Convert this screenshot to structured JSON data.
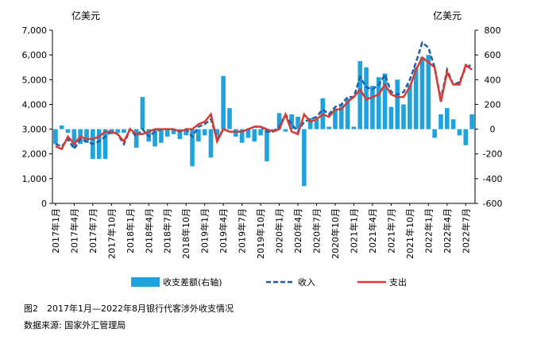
{
  "chart_data": {
    "type": "combo",
    "y_unit_left": "亿美元",
    "y_unit_right": "亿美元",
    "caption": "图2　2017年1月—2022年8月银行代客涉外收支情况",
    "source": "数据来源: 国家外汇管理局",
    "categories": [
      "2017年1月",
      null,
      null,
      "2017年4月",
      null,
      null,
      "2017年7月",
      null,
      null,
      "2017年10月",
      null,
      null,
      "2018年1月",
      null,
      null,
      "2018年4月",
      null,
      null,
      "2018年7月",
      null,
      null,
      "2018年10月",
      null,
      null,
      "2019年1月",
      null,
      null,
      "2019年4月",
      null,
      null,
      "2019年7月",
      null,
      null,
      "2019年10月",
      null,
      null,
      "2020年1月",
      null,
      null,
      "2020年4月",
      null,
      null,
      "2020年7月",
      null,
      null,
      "2020年10月",
      null,
      null,
      "2021年1月",
      null,
      null,
      "2021年4月",
      null,
      null,
      "2021年7月",
      null,
      null,
      "2021年10月",
      null,
      null,
      "2022年1月",
      null,
      null,
      "2022年4月",
      null,
      null,
      "2022年7月",
      null
    ],
    "series": [
      {
        "name": "收支差额(右轴)",
        "type": "bar",
        "axis": "y2",
        "color": "#1fa3de",
        "values": [
          -120,
          30,
          -30,
          -150,
          -120,
          -110,
          -240,
          -240,
          -240,
          -40,
          -30,
          -30,
          -10,
          -150,
          260,
          -100,
          -140,
          -110,
          -60,
          -40,
          -80,
          -50,
          -300,
          -100,
          -50,
          -230,
          -50,
          430,
          170,
          -60,
          -110,
          -70,
          -100,
          -50,
          -260,
          -10,
          130,
          -20,
          120,
          100,
          -460,
          90,
          80,
          250,
          20,
          160,
          200,
          250,
          20,
          550,
          500,
          350,
          420,
          450,
          180,
          400,
          200,
          360,
          500,
          580,
          600,
          -70,
          120,
          170,
          80,
          -50,
          -130,
          120
        ]
      },
      {
        "name": "收入",
        "type": "line",
        "dashed": true,
        "color": "#1f5fa8",
        "values": [
          2400,
          2300,
          2600,
          2200,
          2600,
          2500,
          2400,
          2500,
          2700,
          2900,
          2800,
          2400,
          3000,
          2700,
          3000,
          2700,
          2900,
          3000,
          3000,
          3000,
          2900,
          3000,
          2700,
          3100,
          3200,
          3400,
          2600,
          3000,
          2900,
          2900,
          2900,
          3000,
          3100,
          3100,
          2900,
          2900,
          3100,
          3600,
          3200,
          2900,
          3300,
          3400,
          3500,
          3800,
          3600,
          3900,
          4000,
          4300,
          4300,
          5100,
          4700,
          4600,
          4800,
          5200,
          4500,
          4400,
          4500,
          5000,
          5700,
          6500,
          6300,
          5500,
          4200,
          5400,
          4800,
          4900,
          5500,
          5600
        ]
      },
      {
        "name": "支出",
        "type": "line",
        "dashed": false,
        "color": "#d93a35",
        "values": [
          2300,
          2200,
          2700,
          2400,
          2700,
          2600,
          2600,
          2700,
          2900,
          2900,
          2800,
          2500,
          3000,
          2800,
          2800,
          2900,
          3000,
          3000,
          3000,
          3000,
          2900,
          3000,
          3000,
          3200,
          3300,
          3600,
          2500,
          3000,
          2900,
          2900,
          2900,
          3000,
          3100,
          3100,
          3000,
          2900,
          3000,
          3600,
          2900,
          2800,
          3600,
          3300,
          3400,
          3600,
          3500,
          3800,
          3800,
          4100,
          4300,
          4600,
          4200,
          4300,
          4400,
          4800,
          4400,
          4300,
          4300,
          4700,
          5400,
          5900,
          5700,
          5500,
          4100,
          5300,
          4800,
          4800,
          5600,
          5400
        ]
      }
    ],
    "ylim": [
      0,
      7000
    ],
    "yticks": [
      0,
      {
        "value": 1000,
        "label": "1,000"
      },
      {
        "value": 2000,
        "label": "2,000"
      },
      {
        "value": 3000,
        "label": "3,000"
      },
      {
        "value": 4000,
        "label": "4,000"
      },
      {
        "value": 5000,
        "label": "5,000"
      },
      {
        "value": 6000,
        "label": "6,000"
      },
      {
        "value": 7000,
        "label": "7,000"
      }
    ],
    "y2lim": [
      -600,
      800
    ],
    "y2ticks": [
      -600,
      -400,
      -200,
      0,
      200,
      400,
      600,
      800
    ]
  }
}
